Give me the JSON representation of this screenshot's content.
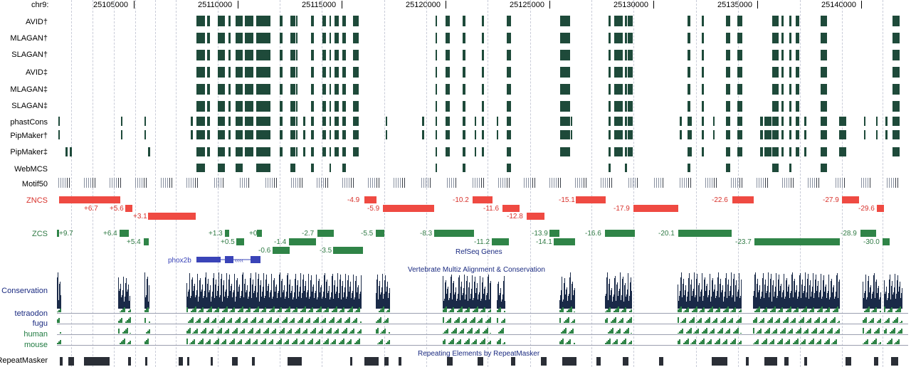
{
  "chrom_label": "chr9:",
  "positions": [
    "25105000",
    "25110000",
    "25115000",
    "25120000",
    "25125000",
    "25130000",
    "25135000",
    "25140000"
  ],
  "track_labels": [
    "AVID†",
    "MLAGAN†",
    "SLAGAN†",
    "AVID‡",
    "MLAGAN‡",
    "SLAGAN‡",
    "phastCons",
    "PipMaker†",
    "PipMaker‡",
    "WebMCS",
    "Motif50"
  ],
  "znc_label": "ZNCS",
  "zcs_label": "ZCS",
  "znc_scores": [
    "+6.7",
    "+5.6",
    "+3.1",
    "-4.9",
    "-5.9",
    "-10.2",
    "-11.6",
    "-12.8",
    "-15.1",
    "-17.9",
    "-22.6",
    "-27.9",
    "-29.6"
  ],
  "zcs_scores": [
    "+9.7",
    "+6.4",
    "+5.4",
    "+1.3",
    "+0.5",
    "+0",
    "-0.6",
    "-1.4",
    "-2.7",
    "-3.5",
    "-5.5",
    "-8.3",
    "-11.2",
    "-13.9",
    "-14.1",
    "-16.6",
    "-20.1",
    "-23.7",
    "-28.9",
    "-30.0"
  ],
  "refseq_title": "RefSeq Genes",
  "gene_name": "phox2b",
  "multiz_title": "Vertebrate Multiz Alignment & Conservation",
  "conservation_label": "Conservation",
  "species": [
    "tetraodon",
    "fugu",
    "human",
    "mouse"
  ],
  "repeat_title": "Repeating Elements by RepeatMasker",
  "repeat_label": "RepeatMasker",
  "colors": {
    "red": "#ef4a42",
    "green": "#2f8447",
    "block": "#1e4a3a",
    "cons": "#1a2a48",
    "gene": "#3a44b8"
  }
}
